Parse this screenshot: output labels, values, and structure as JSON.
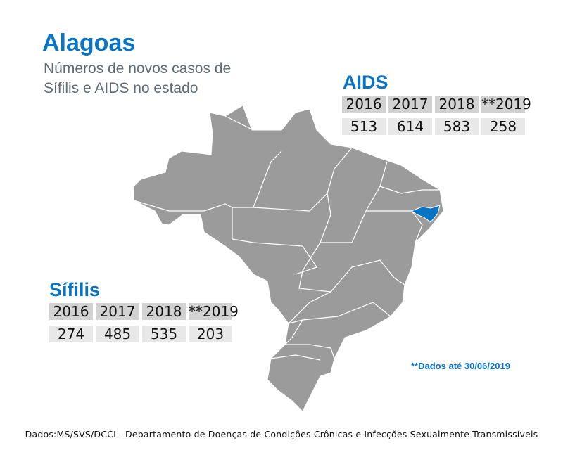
{
  "header": {
    "title": "Alagoas",
    "subtitle": "Números de novos casos de Sífilis e AIDS no estado"
  },
  "aids": {
    "title": "AIDS",
    "years": [
      "2016",
      "2017",
      "2018",
      "**2019"
    ],
    "values": [
      "513",
      "614",
      "583",
      "258"
    ]
  },
  "sifilis": {
    "title": "Sífilis",
    "years": [
      "2016",
      "2017",
      "2018",
      "**2019"
    ],
    "values": [
      "274",
      "485",
      "535",
      "203"
    ]
  },
  "map": {
    "highlight_state": "Alagoas",
    "highlight_color": "#0a74c4",
    "base_color": "#9b9b9b"
  },
  "note": "**Dados até 30/06/2019",
  "source": "Dados:MS/SVS/DCCI - Departamento de Doenças de Condições Crônicas e Infecções Sexualmente Transmissíveis"
}
